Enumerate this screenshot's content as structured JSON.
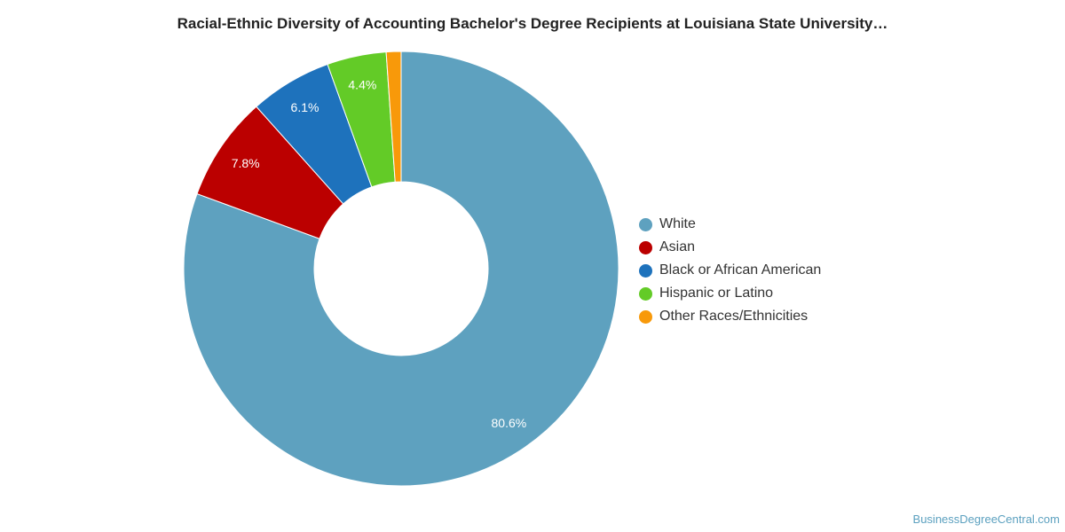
{
  "title": "Racial-Ethnic Diversity of Accounting Bachelor's Degree Recipients at Louisiana State University…",
  "watermark": "BusinessDegreeCentral.com",
  "chart_data": {
    "type": "pie",
    "donut": true,
    "legend_position": "right",
    "categories": [
      "White",
      "Asian",
      "Black or African American",
      "Hispanic or Latino",
      "Other Races/Ethnicities"
    ],
    "values": [
      80.6,
      7.8,
      6.1,
      4.4,
      1.1
    ],
    "labels": [
      "80.6%",
      "7.8%",
      "6.1%",
      "4.4%",
      ""
    ],
    "colors": [
      "#5ea1bf",
      "#bb0000",
      "#1e72bc",
      "#63cb27",
      "#f8990a"
    ]
  }
}
